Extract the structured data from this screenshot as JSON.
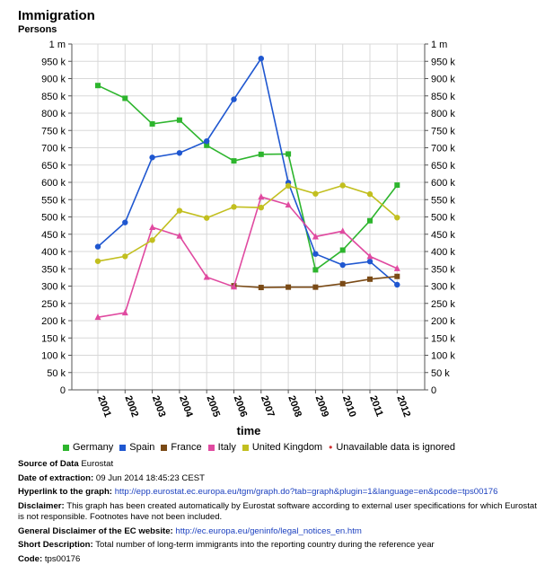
{
  "header": {
    "title": "Immigration",
    "subtitle": "Persons"
  },
  "chart_data": {
    "type": "line",
    "xlabel": "time",
    "ylabel": "",
    "ylim": [
      0,
      1000000
    ],
    "y_ticks": [
      0,
      50000,
      100000,
      150000,
      200000,
      250000,
      300000,
      350000,
      400000,
      450000,
      500000,
      550000,
      600000,
      650000,
      700000,
      750000,
      800000,
      850000,
      900000,
      950000,
      1000000
    ],
    "y_tick_labels": [
      "0",
      "50 k",
      "100 k",
      "150 k",
      "200 k",
      "250 k",
      "300 k",
      "350 k",
      "400 k",
      "450 k",
      "500 k",
      "550 k",
      "600 k",
      "650 k",
      "700 k",
      "750 k",
      "800 k",
      "850 k",
      "900 k",
      "950 k",
      "1 m"
    ],
    "categories": [
      "2001",
      "2002",
      "2003",
      "2004",
      "2005",
      "2006",
      "2007",
      "2008",
      "2009",
      "2010",
      "2011",
      "2012"
    ],
    "grid": true,
    "legend_position": "bottom",
    "series": [
      {
        "name": "Germany",
        "color": "#2db52d",
        "marker": "square",
        "values": [
          880000,
          843000,
          769000,
          780000,
          707000,
          662000,
          681000,
          682000,
          347000,
          404000,
          489000,
          592000
        ]
      },
      {
        "name": "Spain",
        "color": "#1f57d0",
        "marker": "circle",
        "values": [
          414000,
          484000,
          672000,
          685000,
          719000,
          840000,
          958000,
          599000,
          393000,
          361000,
          371000,
          304000
        ]
      },
      {
        "name": "France",
        "color": "#7a4a16",
        "marker": "square",
        "values": [
          null,
          null,
          null,
          null,
          null,
          301000,
          296000,
          297000,
          297000,
          307000,
          320000,
          328000
        ]
      },
      {
        "name": "Italy",
        "color": "#e04aa0",
        "marker": "triangle",
        "values": [
          210000,
          223000,
          470000,
          445000,
          326000,
          298000,
          558000,
          535000,
          443000,
          459000,
          386000,
          351000
        ]
      },
      {
        "name": "United Kingdom",
        "color": "#c2bf1f",
        "marker": "circle",
        "values": [
          372000,
          386000,
          433000,
          518000,
          497000,
          529000,
          527000,
          590000,
          567000,
          591000,
          566000,
          498000
        ]
      }
    ],
    "unavailable_note": "Unavailable data is ignored",
    "unavailable_color": "#d03030"
  },
  "meta": {
    "source_label": "Source of Data",
    "source_value": "Eurostat",
    "date_label": "Date of extraction:",
    "date_value": "09 Jun 2014 18:45:23 CEST",
    "hyperlink_label": "Hyperlink to the graph:",
    "hyperlink_value": "http://epp.eurostat.ec.europa.eu/tgm/graph.do?tab=graph&plugin=1&language=en&pcode=tps00176",
    "disclaimer_label": "Disclaimer:",
    "disclaimer_value": "This graph has been created automatically by Eurostat software according to external user specifications for which Eurostat is not responsible. Footnotes have not been included.",
    "general_label": "General Disclaimer of the EC website:",
    "general_value": "http://ec.europa.eu/geninfo/legal_notices_en.htm",
    "short_label": "Short Description:",
    "short_value": "Total number of long-term immigrants into the reporting country during the reference year",
    "code_label": "Code:",
    "code_value": "tps00176"
  }
}
